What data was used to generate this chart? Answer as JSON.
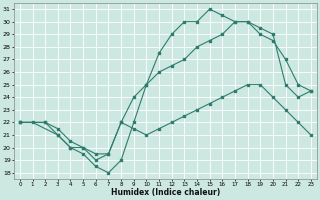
{
  "xlabel": "Humidex (Indice chaleur)",
  "bg_color": "#cce8e0",
  "grid_color": "#ffffff",
  "line_color": "#2e7d6e",
  "xlim": [
    -0.5,
    23.5
  ],
  "ylim": [
    17.5,
    31.5
  ],
  "xticks": [
    0,
    1,
    2,
    3,
    4,
    5,
    6,
    7,
    8,
    9,
    10,
    11,
    12,
    13,
    14,
    15,
    16,
    17,
    18,
    19,
    20,
    21,
    22,
    23
  ],
  "yticks": [
    18,
    19,
    20,
    21,
    22,
    23,
    24,
    25,
    26,
    27,
    28,
    29,
    30,
    31
  ],
  "lines": [
    {
      "x": [
        0,
        1,
        3,
        4,
        5,
        6,
        7,
        8,
        9,
        10,
        11,
        12,
        13,
        14,
        15,
        16,
        17,
        18,
        19,
        20,
        21,
        22,
        23
      ],
      "y": [
        22,
        22,
        21,
        20,
        19.5,
        18.5,
        18,
        19,
        22,
        25,
        27.5,
        29,
        30,
        30,
        31,
        30.5,
        30,
        30,
        29.5,
        29,
        25,
        24,
        24.5
      ]
    },
    {
      "x": [
        0,
        2,
        3,
        4,
        5,
        6,
        7,
        8,
        9,
        10,
        11,
        12,
        13,
        14,
        15,
        16,
        17,
        18,
        19,
        20,
        21,
        22,
        23
      ],
      "y": [
        22,
        22,
        21,
        20,
        20,
        19,
        19.5,
        22,
        24,
        25,
        26,
        26.5,
        27,
        28,
        28.5,
        29,
        30,
        30,
        29,
        28.5,
        27,
        25,
        24.5
      ]
    },
    {
      "x": [
        0,
        2,
        3,
        4,
        5,
        6,
        7,
        8,
        9,
        10,
        11,
        12,
        13,
        14,
        15,
        16,
        17,
        18,
        19,
        20,
        21,
        22,
        23
      ],
      "y": [
        22,
        22,
        21.5,
        20.5,
        20,
        19.5,
        19.5,
        22,
        21.5,
        21,
        21.5,
        22,
        22.5,
        23,
        23.5,
        24,
        24.5,
        25,
        25,
        24,
        23,
        22,
        21
      ]
    }
  ]
}
